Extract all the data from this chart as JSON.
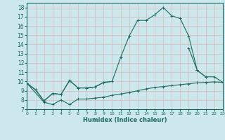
{
  "xlabel": "Humidex (Indice chaleur)",
  "bg_color": "#cce8ec",
  "grid_color": "#b8d8dc",
  "line_color": "#1a6b5e",
  "xlim": [
    0,
    23
  ],
  "ylim": [
    7,
    18.5
  ],
  "xticks": [
    0,
    1,
    2,
    3,
    4,
    5,
    6,
    7,
    8,
    9,
    10,
    11,
    12,
    13,
    14,
    15,
    16,
    17,
    18,
    19,
    20,
    21,
    22,
    23
  ],
  "yticks": [
    7,
    8,
    9,
    10,
    11,
    12,
    13,
    14,
    15,
    16,
    17,
    18
  ],
  "series1_x": [
    0,
    1,
    2,
    3,
    4,
    5,
    6,
    7,
    8,
    9,
    10,
    11,
    12,
    13,
    14,
    15,
    16,
    17,
    18,
    19,
    20,
    21
  ],
  "series1_y": [
    9.8,
    9.1,
    7.9,
    8.7,
    8.6,
    10.1,
    9.3,
    9.3,
    9.4,
    9.9,
    10.0,
    12.6,
    14.9,
    16.6,
    16.6,
    17.2,
    18.0,
    17.1,
    16.8,
    14.9,
    11.2,
    10.5
  ],
  "series2_x": [
    0,
    1,
    2,
    3,
    4,
    5,
    6,
    7,
    8,
    9,
    10,
    19,
    20,
    21,
    22,
    23
  ],
  "series2_y": [
    9.8,
    9.1,
    7.9,
    8.7,
    8.6,
    10.1,
    9.3,
    9.3,
    9.4,
    9.9,
    10.0,
    13.6,
    11.2,
    10.5,
    10.5,
    9.9
  ],
  "series3_x": [
    0,
    2,
    3,
    4,
    5,
    6,
    7,
    8,
    9,
    10,
    11,
    12,
    13,
    14,
    15,
    16,
    17,
    18,
    19,
    20,
    21,
    22,
    23
  ],
  "series3_y": [
    9.8,
    7.75,
    7.5,
    8.0,
    7.5,
    8.1,
    8.1,
    8.2,
    8.3,
    8.5,
    8.65,
    8.8,
    9.0,
    9.2,
    9.35,
    9.45,
    9.55,
    9.65,
    9.75,
    9.85,
    9.9,
    9.95,
    9.9
  ]
}
